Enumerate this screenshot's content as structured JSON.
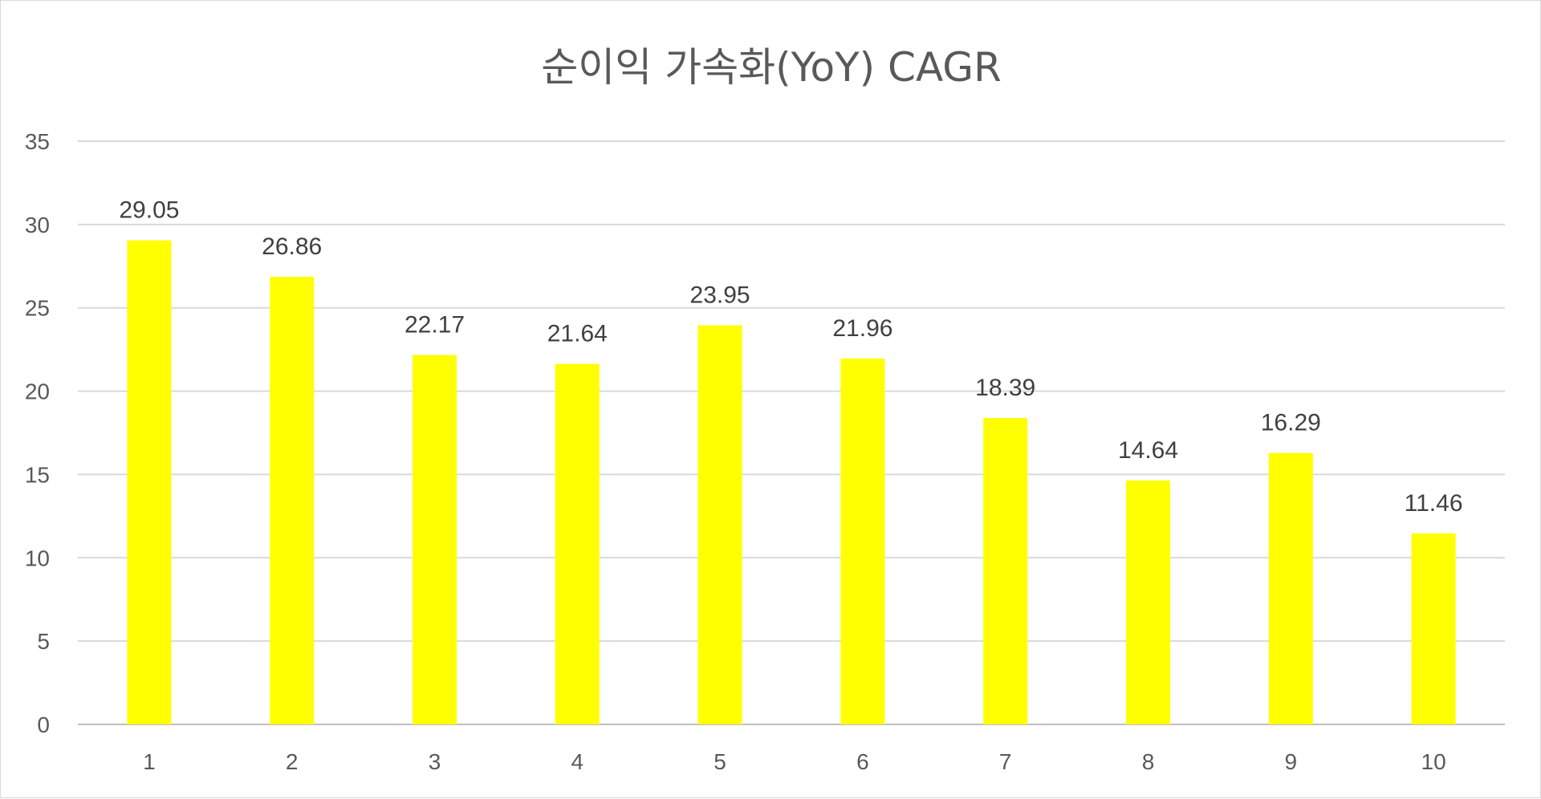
{
  "chart_data": {
    "type": "bar",
    "title": "순이익 가속화(YoY) CAGR",
    "xlabel": "",
    "ylabel": "",
    "categories": [
      "1",
      "2",
      "3",
      "4",
      "5",
      "6",
      "7",
      "8",
      "9",
      "10"
    ],
    "values": [
      29.05,
      26.86,
      22.17,
      21.64,
      23.95,
      21.96,
      18.39,
      14.64,
      16.29,
      11.46
    ],
    "value_labels": [
      "29.05",
      "26.86",
      "22.17",
      "21.64",
      "23.95",
      "21.96",
      "18.39",
      "14.64",
      "16.29",
      "11.46"
    ],
    "ylim": [
      0,
      35
    ],
    "yticks": [
      0,
      5,
      10,
      15,
      20,
      25,
      30,
      35
    ],
    "ytick_labels": [
      "0",
      "5",
      "10",
      "15",
      "20",
      "25",
      "30",
      "35"
    ],
    "grid": true,
    "legend": "none",
    "bar_color": "#FFFF00"
  }
}
